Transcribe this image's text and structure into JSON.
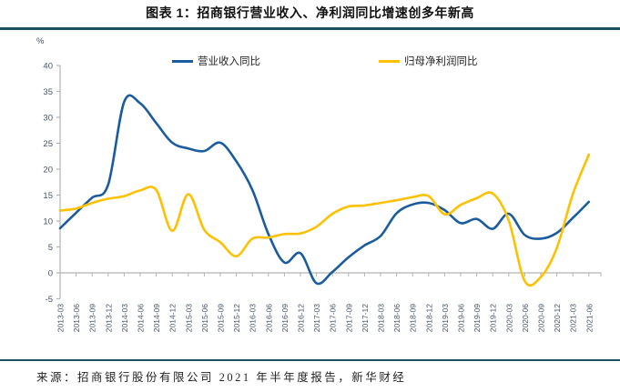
{
  "title": "图表 1：招商银行营业收入、净利润同比增速创多年新高",
  "source": "来源：招商银行股份有限公司 2021 年半年度报告，新华财经",
  "colors": {
    "revenue_line": "#1b5c9e",
    "profit_line": "#fdc101",
    "divider_rule": "#1e4f61",
    "axis_line": "#b3b3b3",
    "tick_label": "#44546a"
  },
  "chart_data": {
    "type": "line",
    "title": "招商银行营业收入、净利润同比增速创多年新高",
    "unit_label": "%",
    "ylim": [
      -5,
      40
    ],
    "yticks": [
      40,
      35,
      30,
      25,
      20,
      15,
      10,
      5,
      0,
      -5
    ],
    "grid": false,
    "legend_position": "top",
    "x": [
      "2013-03",
      "2013-06",
      "2013-09",
      "2013-12",
      "2014-03",
      "2014-06",
      "2014-09",
      "2014-12",
      "2015-03",
      "2015-06",
      "2015-09",
      "2015-12",
      "2016-03",
      "2016-06",
      "2016-09",
      "2016-12",
      "2017-03",
      "2017-06",
      "2017-09",
      "2017-12",
      "2018-03",
      "2018-06",
      "2018-09",
      "2018-12",
      "2019-03",
      "2019-06",
      "2019-09",
      "2019-12",
      "2020-03",
      "2020-06",
      "2020-09",
      "2020-12",
      "2021-03",
      "2021-06"
    ],
    "series": [
      {
        "name": "营业收入同比",
        "color": "#1b5c9e",
        "values": [
          8.6,
          11.6,
          14.5,
          17.0,
          33.0,
          32.7,
          28.9,
          25.1,
          24.0,
          23.5,
          25.1,
          21.5,
          16.0,
          7.5,
          2.0,
          3.8,
          -2.0,
          0.2,
          3.0,
          5.3,
          7.1,
          11.5,
          13.2,
          13.5,
          12.1,
          9.6,
          10.4,
          8.5,
          11.4,
          7.3,
          6.6,
          7.7,
          10.6,
          13.7
        ]
      },
      {
        "name": "归母净利润同比",
        "color": "#fdc101",
        "values": [
          12.0,
          12.4,
          13.5,
          14.3,
          14.8,
          15.9,
          16.0,
          8.1,
          15.2,
          8.3,
          5.9,
          3.2,
          6.6,
          6.8,
          7.5,
          7.6,
          8.9,
          11.4,
          12.8,
          13.0,
          13.5,
          14.0,
          14.6,
          14.8,
          11.3,
          13.1,
          14.4,
          15.3,
          10.1,
          -1.6,
          -0.8,
          4.8,
          15.2,
          22.8
        ]
      }
    ]
  }
}
